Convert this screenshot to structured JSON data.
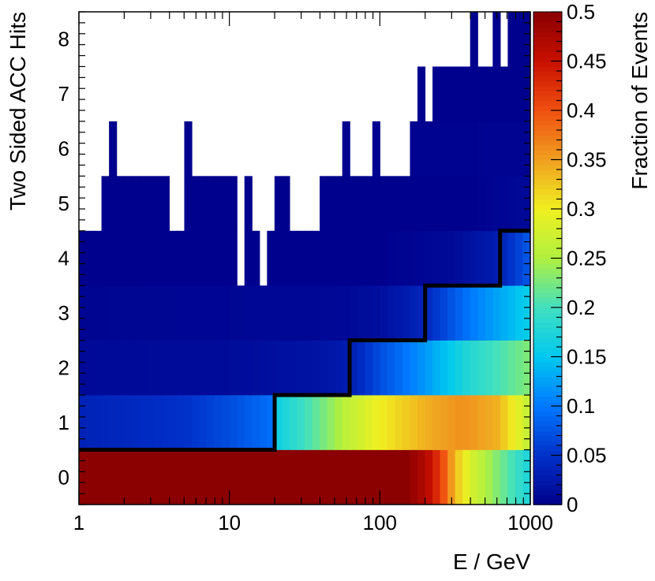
{
  "chart_data": {
    "type": "heatmap",
    "xlabel": "E / GeV",
    "ylabel": "Two Sided ACC Hits",
    "zlabel": "Fraction of Events",
    "x_scale": "log",
    "xlim": [
      1,
      1000
    ],
    "ylim": [
      -0.5,
      8.5
    ],
    "zlim": [
      0,
      0.5
    ],
    "x_tick_labels": [
      "1",
      "10",
      "100",
      "1000"
    ],
    "x_ticks": [
      1,
      10,
      100,
      1000
    ],
    "y_ticks": [
      0,
      1,
      2,
      3,
      4,
      5,
      6,
      7,
      8
    ],
    "y_tick_labels": [
      "0",
      "1",
      "2",
      "3",
      "4",
      "5",
      "6",
      "7",
      "8"
    ],
    "z_ticks": [
      0,
      0.05,
      0.1,
      0.15,
      0.2,
      0.25,
      0.3,
      0.35,
      0.4,
      0.45,
      0.5
    ],
    "z_tick_labels": [
      "0",
      "0.05",
      "0.1",
      "0.15",
      "0.2",
      "0.25",
      "0.3",
      "0.35",
      "0.4",
      "0.45",
      "0.5"
    ],
    "colormap": [
      "#00008b",
      "#0030c8",
      "#0078ff",
      "#00c8f0",
      "#40e0c0",
      "#b0f040",
      "#f0f020",
      "#f0a020",
      "#f05010",
      "#c81000",
      "#8b0000"
    ],
    "bins_x": 60,
    "rows": [
      {
        "y": 0,
        "anchors": [
          [
            1,
            0.5
          ],
          [
            150,
            0.5
          ],
          [
            200,
            0.47
          ],
          [
            250,
            0.42
          ],
          [
            320,
            0.33
          ],
          [
            400,
            0.28
          ],
          [
            600,
            0.23
          ],
          [
            1000,
            0.17
          ]
        ]
      },
      {
        "y": 1,
        "anchors": [
          [
            1,
            0.035
          ],
          [
            5,
            0.05
          ],
          [
            10,
            0.07
          ],
          [
            19.9,
            0.095
          ],
          [
            20.1,
            0.16
          ],
          [
            40,
            0.22
          ],
          [
            60,
            0.26
          ],
          [
            100,
            0.3
          ],
          [
            200,
            0.34
          ],
          [
            350,
            0.36
          ],
          [
            600,
            0.34
          ],
          [
            1000,
            0.26
          ]
        ]
      },
      {
        "y": 2,
        "anchors": [
          [
            1,
            0.01
          ],
          [
            10,
            0.012
          ],
          [
            40,
            0.02
          ],
          [
            63,
            0.03
          ],
          [
            100,
            0.07
          ],
          [
            200,
            0.12
          ],
          [
            400,
            0.18
          ],
          [
            1000,
            0.23
          ]
        ]
      },
      {
        "y": 3,
        "anchors": [
          [
            1,
            0.005
          ],
          [
            50,
            0.008
          ],
          [
            100,
            0.015
          ],
          [
            200,
            0.04
          ],
          [
            400,
            0.1
          ],
          [
            1000,
            0.16
          ]
        ]
      },
      {
        "y": 4,
        "anchors": [
          [
            1,
            0.001
          ],
          [
            100,
            0.002
          ],
          [
            300,
            0.01
          ],
          [
            600,
            0.03
          ],
          [
            1000,
            0.08
          ]
        ]
      },
      {
        "y": 5,
        "anchors": [
          [
            1,
            0.001
          ],
          [
            400,
            0.002
          ],
          [
            1000,
            0.01
          ]
        ]
      },
      {
        "y": 6,
        "anchors": [
          [
            1,
            0.001
          ],
          [
            1000,
            0.004
          ]
        ]
      },
      {
        "y": 7,
        "anchors": [
          [
            1,
            0.001
          ],
          [
            1000,
            0.002
          ]
        ]
      },
      {
        "y": 8,
        "anchors": [
          [
            1,
            0.001
          ],
          [
            1000,
            0.001
          ]
        ]
      }
    ],
    "populated_ranges": [
      {
        "y": 5,
        "ranges": [
          [
            1.4,
            3.0
          ],
          [
            3.25,
            3.95
          ],
          [
            5.0,
            7.5
          ],
          [
            8.0,
            11.0
          ],
          [
            12.0,
            14.0
          ],
          [
            15.0,
            16.0
          ],
          [
            17.0,
            18.5
          ],
          [
            20.0,
            21.5
          ],
          [
            23.0,
            25.0
          ],
          [
            40.0,
            60.0
          ],
          [
            63.0,
            1000
          ]
        ]
      },
      {
        "y": 6,
        "ranges": [
          [
            1.6,
            1.8
          ],
          [
            5.0,
            5.5
          ],
          [
            55.0,
            60.0
          ],
          [
            90.0,
            100.0
          ],
          [
            120.0,
            130.0
          ],
          [
            150.0,
            1000
          ]
        ]
      },
      {
        "y": 7,
        "ranges": [
          [
            180.0,
            190.0
          ],
          [
            220.0,
            1000
          ]
        ]
      },
      {
        "y": 8,
        "ranges": [
          [
            380.0,
            440.0
          ],
          [
            580.0,
            620.0
          ],
          [
            700.0,
            1000
          ]
        ]
      },
      {
        "y": 4,
        "ranges": [
          [
            1.0,
            11.5
          ],
          [
            12.4,
            15.5
          ],
          [
            16.9,
            1000
          ]
        ]
      }
    ],
    "threshold_line": [
      [
        1,
        0.5
      ],
      [
        20,
        0.5
      ],
      [
        20,
        1.5
      ],
      [
        63,
        1.5
      ],
      [
        63,
        2.5
      ],
      [
        200,
        2.5
      ],
      [
        200,
        3.5
      ],
      [
        630,
        3.5
      ],
      [
        630,
        4.5
      ],
      [
        1000,
        4.5
      ]
    ]
  }
}
